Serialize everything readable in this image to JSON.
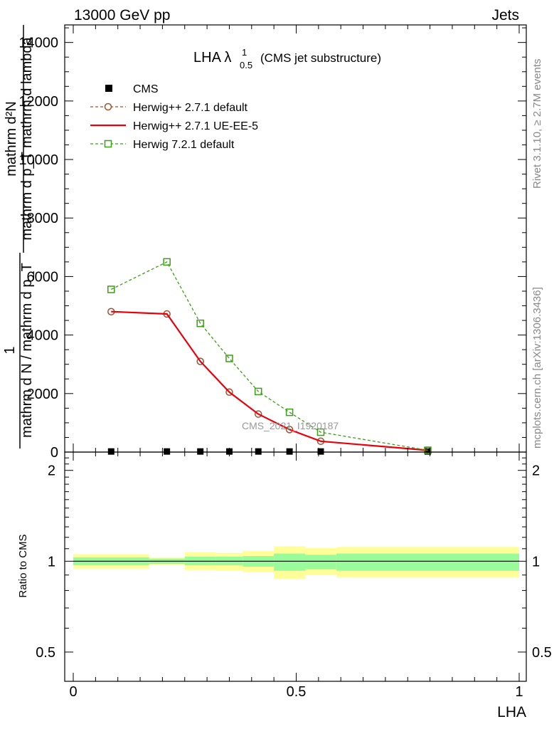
{
  "header": {
    "left": "13000 GeV pp",
    "right": "Jets"
  },
  "side_text": {
    "rivet": "Rivet 3.1.10, ≥ 2.7M events",
    "mcplots": "mcplots.cern.ch [arXiv:1306.3436]"
  },
  "plot_title": {
    "main": "LHA λ",
    "sup": "1",
    "sub": "0.5",
    "suffix": "(CMS jet substructure)"
  },
  "watermark": "CMS_2021_I1920187",
  "y_label_main": {
    "numerator": "mathrm d²N",
    "denominator": "mathrm d p_T mathrm d lambda",
    "lhs_num": "1",
    "lhs_den": "mathrm d N / mathrm d p_T"
  },
  "colors": {
    "cms": "#000000",
    "herwig271_default": "#a0522d",
    "herwig271_ueee5": "#e8000b",
    "herwig721_default": "#3c9d16",
    "band_outer": "#fffe99",
    "band_inner": "#99fb99"
  },
  "chart_data": [
    {
      "type": "line",
      "panel": "main",
      "xlabel": "",
      "ylabel": "",
      "xlim": [
        0,
        1
      ],
      "ylim": [
        0,
        14600
      ],
      "yticks": [
        0,
        2000,
        4000,
        6000,
        8000,
        10000,
        12000,
        14000
      ],
      "ytick_labels": [
        "0",
        "2000",
        "4000",
        "6000",
        "8000",
        "10000",
        "12000",
        "14000"
      ],
      "legend_position": "top-left",
      "series": [
        {
          "name": "CMS",
          "style": "marker-square",
          "color": "#000000",
          "x": [
            0.085,
            0.21,
            0.285,
            0.35,
            0.415,
            0.485,
            0.555,
            0.795
          ],
          "y": [
            20,
            20,
            20,
            20,
            20,
            20,
            20,
            20
          ]
        },
        {
          "name": "Herwig++ 2.7.1 default",
          "style": "dashed-circle",
          "color": "#a0522d",
          "x": [
            0.085,
            0.21,
            0.285,
            0.35,
            0.415,
            0.485,
            0.555,
            0.795
          ],
          "y": [
            4800,
            4720,
            3100,
            2050,
            1300,
            770,
            370,
            60
          ]
        },
        {
          "name": "Herwig++ 2.7.1 UE-EE-5",
          "style": "solid",
          "color": "#e8000b",
          "x": [
            0.085,
            0.21,
            0.285,
            0.35,
            0.415,
            0.485,
            0.555,
            0.795
          ],
          "y": [
            4800,
            4720,
            3100,
            2050,
            1300,
            770,
            370,
            60
          ]
        },
        {
          "name": "Herwig 7.2.1 default",
          "style": "dashed-square",
          "color": "#3c9d16",
          "x": [
            0.085,
            0.21,
            0.285,
            0.35,
            0.415,
            0.485,
            0.555,
            0.795
          ],
          "y": [
            5560,
            6500,
            4400,
            3200,
            2070,
            1360,
            680,
            60
          ]
        }
      ]
    },
    {
      "type": "line",
      "panel": "ratio",
      "xlabel": "LHA",
      "ylabel": "Ratio to CMS",
      "xlim": [
        0,
        1
      ],
      "ylim": [
        0.4,
        2.3
      ],
      "xticks": [
        0,
        0.5,
        1
      ],
      "xtick_labels": [
        "0",
        "0.5",
        "1"
      ],
      "yticks": [
        0.5,
        1,
        2
      ],
      "ytick_labels": [
        "0.5",
        "1",
        "2"
      ],
      "y_scale": "log",
      "reference_line": 1,
      "bins": [
        {
          "lo": 0.0,
          "hi": 0.17,
          "inner": [
            0.97,
            1.03
          ],
          "outer": [
            0.945,
            1.055
          ]
        },
        {
          "lo": 0.17,
          "hi": 0.25,
          "inner": [
            0.98,
            1.02
          ],
          "outer": [
            0.97,
            1.03
          ]
        },
        {
          "lo": 0.25,
          "hi": 0.32,
          "inner": [
            0.97,
            1.035
          ],
          "outer": [
            0.935,
            1.07
          ]
        },
        {
          "lo": 0.32,
          "hi": 0.38,
          "inner": [
            0.97,
            1.035
          ],
          "outer": [
            0.93,
            1.065
          ]
        },
        {
          "lo": 0.38,
          "hi": 0.45,
          "inner": [
            0.96,
            1.04
          ],
          "outer": [
            0.92,
            1.08
          ]
        },
        {
          "lo": 0.45,
          "hi": 0.52,
          "inner": [
            0.93,
            1.06
          ],
          "outer": [
            0.875,
            1.12
          ]
        },
        {
          "lo": 0.52,
          "hi": 0.59,
          "inner": [
            0.94,
            1.05
          ],
          "outer": [
            0.9,
            1.105
          ]
        },
        {
          "lo": 0.59,
          "hi": 1.0,
          "inner": [
            0.93,
            1.06
          ],
          "outer": [
            0.885,
            1.115
          ]
        }
      ]
    }
  ]
}
